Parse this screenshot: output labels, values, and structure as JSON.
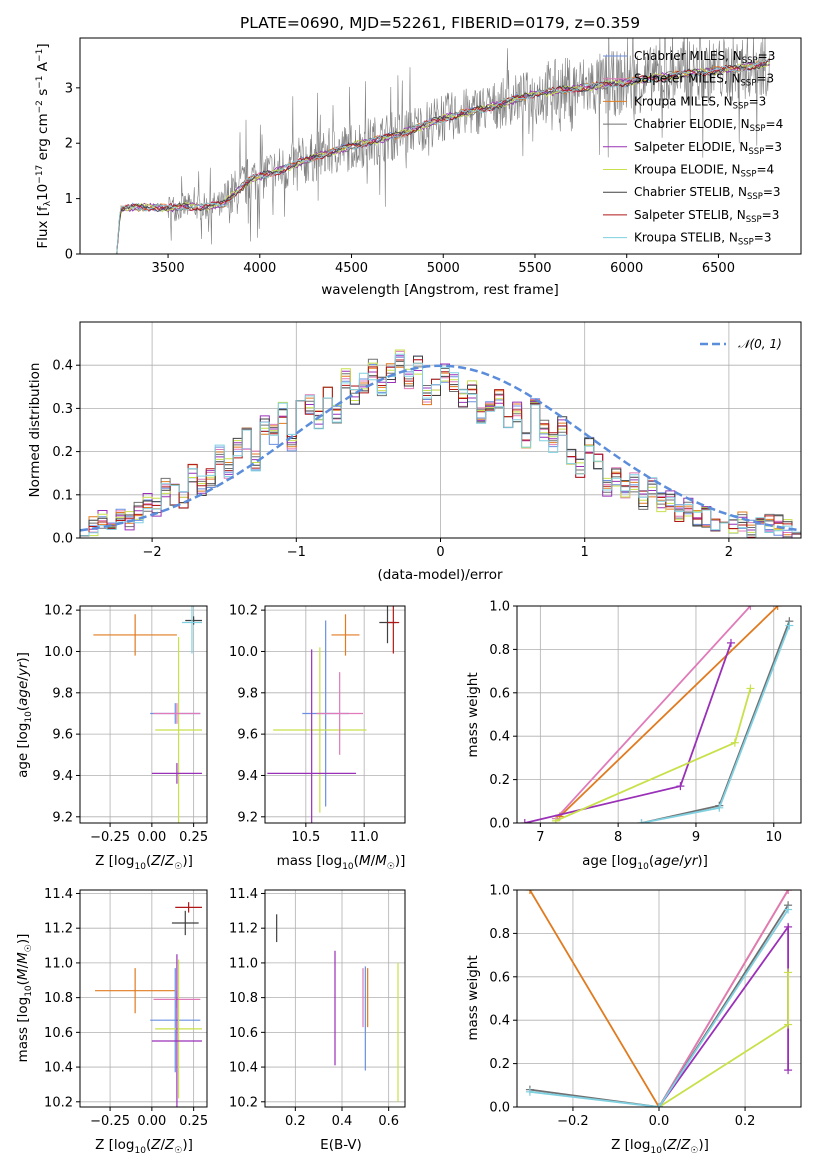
{
  "chart_data": [
    {
      "type": "line",
      "title": "PLATE=0690, MJD=52261, FIBERID=0179, z=0.359",
      "xlabel": "wavelength [Angstrom, rest frame]",
      "ylabel": "Flux [f_λ 10^-17 erg cm^-2 s^-1 A^-1]",
      "xlim": [
        3020,
        6950
      ],
      "ylim": [
        0,
        3.9
      ],
      "xticks": [
        3500,
        4000,
        4500,
        5000,
        5500,
        6000,
        6500
      ],
      "yticks": [
        0,
        1,
        2,
        3
      ],
      "legend_position": "top-right",
      "observed_color": "#808080",
      "continuum_points": [
        [
          3220,
          0
        ],
        [
          3240,
          0.8
        ],
        [
          3300,
          0.84
        ],
        [
          3400,
          0.85
        ],
        [
          3500,
          0.83
        ],
        [
          3600,
          0.86
        ],
        [
          3700,
          0.85
        ],
        [
          3800,
          0.9
        ],
        [
          3950,
          1.35
        ],
        [
          4100,
          1.5
        ],
        [
          4300,
          1.75
        ],
        [
          4500,
          1.95
        ],
        [
          4750,
          2.15
        ],
        [
          5000,
          2.45
        ],
        [
          5250,
          2.65
        ],
        [
          5500,
          2.9
        ],
        [
          5750,
          3.0
        ],
        [
          6000,
          3.1
        ],
        [
          6300,
          3.25
        ],
        [
          6600,
          3.35
        ],
        [
          6780,
          3.45
        ]
      ],
      "series": [
        {
          "name": "Chabrier MILES",
          "nssp": "3",
          "color": "#6a8fe0"
        },
        {
          "name": "Salpeter MILES",
          "nssp": "3",
          "color": "#e07ab8"
        },
        {
          "name": "Kroupa MILES",
          "nssp": "3",
          "color": "#e07b20"
        },
        {
          "name": "Chabrier ELODIE",
          "nssp": "4",
          "color": "#707070"
        },
        {
          "name": "Salpeter ELODIE",
          "nssp": "3",
          "color": "#9a30b8"
        },
        {
          "name": "Kroupa ELODIE",
          "nssp": "4",
          "color": "#c8e04a"
        },
        {
          "name": "Chabrier STELIB",
          "nssp": "3",
          "color": "#404040"
        },
        {
          "name": "Salpeter STELIB",
          "nssp": "3",
          "color": "#b01818"
        },
        {
          "name": "Kroupa STELIB",
          "nssp": "3",
          "color": "#7fd0e0"
        }
      ]
    },
    {
      "type": "bar",
      "xlabel": "(data-model)/error",
      "ylabel": "Normed distribution",
      "xlim": [
        -2.5,
        2.5
      ],
      "ylim": [
        0,
        0.5
      ],
      "xticks": [
        -2,
        -1,
        0,
        1,
        2
      ],
      "yticks": [
        0.0,
        0.1,
        0.2,
        0.3,
        0.4
      ],
      "grid": true,
      "legend_position": "top-right",
      "reference_curve": {
        "label": "𝒩(0, 1)",
        "color": "#5b8ddb"
      },
      "bin_width": 0.1,
      "bin_start": -2.5,
      "base_hist": [
        0.03,
        0.03,
        0.04,
        0.03,
        0.05,
        0.04,
        0.06,
        0.08,
        0.07,
        0.12,
        0.1,
        0.09,
        0.15,
        0.12,
        0.14,
        0.19,
        0.16,
        0.21,
        0.23,
        0.18,
        0.26,
        0.24,
        0.29,
        0.22,
        0.3,
        0.31,
        0.27,
        0.34,
        0.29,
        0.37,
        0.33,
        0.36,
        0.39,
        0.35,
        0.38,
        0.42,
        0.37,
        0.4,
        0.33,
        0.35,
        0.38,
        0.36,
        0.32,
        0.34,
        0.28,
        0.3,
        0.32,
        0.26,
        0.29,
        0.22,
        0.3,
        0.25,
        0.22,
        0.26,
        0.19,
        0.16,
        0.21,
        0.17,
        0.12,
        0.14,
        0.11,
        0.13,
        0.09,
        0.12,
        0.08,
        0.09,
        0.06,
        0.07,
        0.04,
        0.05,
        0.03,
        0.05,
        0.03,
        0.04,
        0.02,
        0.04,
        0.03,
        0.03,
        0.02,
        0.03
      ],
      "series_colors": [
        "#6a8fe0",
        "#e07ab8",
        "#e07b20",
        "#707070",
        "#9a30b8",
        "#c8e04a",
        "#404040",
        "#b01818",
        "#7fd0e0"
      ]
    },
    {
      "type": "scatter",
      "xlabel": "Z [log₁₀(Z/Z☉)]",
      "ylabel": "age  [log₁₀(age/yr)]",
      "xlim": [
        -0.43,
        0.33
      ],
      "ylim": [
        9.17,
        10.22
      ],
      "xticks": [
        -0.25,
        0.0,
        0.25
      ],
      "yticks": [
        9.2,
        9.4,
        9.6,
        9.8,
        10.0,
        10.2
      ],
      "grid": true,
      "errorbars": [
        {
          "x": -0.1,
          "y": 10.08,
          "xerr": 0.25,
          "yerr": 0.1,
          "color": "#e07b20"
        },
        {
          "x": 0.25,
          "y": 10.15,
          "xerr": 0.05,
          "yerr": 0.02,
          "color": "#404040"
        },
        {
          "x": 0.24,
          "y": 10.14,
          "xerr": 0.06,
          "yerr": 0.15,
          "color": "#7fd0e0"
        },
        {
          "x": 0.14,
          "y": 9.7,
          "xerr": 0.15,
          "yerr": 0.05,
          "color": "#6a8fe0"
        },
        {
          "x": 0.16,
          "y": 9.62,
          "xerr": 0.14,
          "yerr": 0.45,
          "color": "#c8e04a"
        },
        {
          "x": 0.15,
          "y": 9.7,
          "xerr": 0.14,
          "yerr": 0.05,
          "color": "#e07ab8"
        },
        {
          "x": 0.15,
          "y": 9.41,
          "xerr": 0.15,
          "yerr": 0.05,
          "color": "#9a30b8"
        }
      ]
    },
    {
      "type": "scatter",
      "xlabel": "mass [log₁₀(M/M☉)]",
      "xlim": [
        10.15,
        11.35
      ],
      "ylim": [
        9.17,
        10.22
      ],
      "xticks": [
        10.5,
        11.0
      ],
      "yticks": [
        9.2,
        9.4,
        9.6,
        9.8,
        10.0,
        10.2
      ],
      "grid": true,
      "errorbars": [
        {
          "x": 10.84,
          "y": 10.08,
          "xerr": 0.12,
          "yerr": 0.1,
          "color": "#e07b20"
        },
        {
          "x": 11.2,
          "y": 10.14,
          "xerr": 0.07,
          "yerr": 0.1,
          "color": "#404040"
        },
        {
          "x": 11.25,
          "y": 10.14,
          "xerr": 0.05,
          "yerr": 0.15,
          "color": "#b01818"
        },
        {
          "x": 10.67,
          "y": 9.7,
          "xerr": 0.2,
          "yerr": 0.45,
          "color": "#6a8fe0"
        },
        {
          "x": 10.62,
          "y": 9.62,
          "xerr": 0.4,
          "yerr": 0.4,
          "color": "#c8e04a"
        },
        {
          "x": 10.79,
          "y": 9.7,
          "xerr": 0.2,
          "yerr": 0.2,
          "color": "#e07ab8"
        },
        {
          "x": 10.55,
          "y": 9.41,
          "xerr": 0.38,
          "yerr": 0.6,
          "color": "#9a30b8"
        }
      ]
    },
    {
      "type": "line",
      "xlabel": "age  [log₁₀(age/yr)]",
      "ylabel": "mass weight",
      "xlim": [
        6.7,
        10.35
      ],
      "ylim": [
        0,
        1.0
      ],
      "xticks": [
        7,
        8,
        9,
        10
      ],
      "yticks": [
        0.0,
        0.2,
        0.4,
        0.6,
        0.8,
        1.0
      ],
      "grid": true,
      "series": [
        {
          "color": "#e07ab8",
          "points": [
            [
              7.2,
              0.02
            ],
            [
              9.7,
              1.0
            ]
          ]
        },
        {
          "color": "#e07b20",
          "points": [
            [
              7.25,
              0.03
            ],
            [
              10.05,
              1.0
            ]
          ]
        },
        {
          "color": "#9a30b8",
          "points": [
            [
              6.8,
              0.0
            ],
            [
              8.8,
              0.17
            ],
            [
              9.45,
              0.83
            ]
          ]
        },
        {
          "color": "#c8e04a",
          "points": [
            [
              7.2,
              0.01
            ],
            [
              9.5,
              0.37
            ],
            [
              9.7,
              0.62
            ]
          ]
        },
        {
          "color": "#707070",
          "points": [
            [
              8.3,
              0.0
            ],
            [
              9.3,
              0.08
            ],
            [
              10.2,
              0.93
            ]
          ]
        },
        {
          "color": "#7fd0e0",
          "points": [
            [
              8.3,
              0.0
            ],
            [
              9.3,
              0.07
            ],
            [
              10.2,
              0.91
            ]
          ]
        }
      ]
    },
    {
      "type": "scatter",
      "xlabel": "Z [log₁₀(Z/Z☉)]",
      "ylabel": "mass [log₁₀(M/M☉)]",
      "xlim": [
        -0.43,
        0.33
      ],
      "ylim": [
        10.17,
        11.42
      ],
      "xticks": [
        -0.25,
        0.0,
        0.25
      ],
      "yticks": [
        10.2,
        10.4,
        10.6,
        10.8,
        11.0,
        11.2,
        11.4
      ],
      "grid": true,
      "errorbars": [
        {
          "x": -0.1,
          "y": 10.84,
          "xerr": 0.24,
          "yerr": 0.13,
          "color": "#e07b20"
        },
        {
          "x": 0.22,
          "y": 11.32,
          "xerr": 0.08,
          "yerr": 0.03,
          "color": "#b01818"
        },
        {
          "x": 0.2,
          "y": 11.23,
          "xerr": 0.08,
          "yerr": 0.07,
          "color": "#404040"
        },
        {
          "x": 0.14,
          "y": 10.67,
          "xerr": 0.15,
          "yerr": 0.3,
          "color": "#6a8fe0"
        },
        {
          "x": 0.16,
          "y": 10.62,
          "xerr": 0.14,
          "yerr": 0.4,
          "color": "#c8e04a"
        },
        {
          "x": 0.15,
          "y": 10.79,
          "xerr": 0.14,
          "yerr": 0.05,
          "color": "#e07ab8"
        },
        {
          "x": 0.15,
          "y": 10.55,
          "xerr": 0.15,
          "yerr": 0.5,
          "color": "#9a30b8"
        }
      ]
    },
    {
      "type": "scatter",
      "xlabel": "E(B-V)",
      "xlim": [
        0.07,
        0.67
      ],
      "ylim": [
        10.17,
        11.42
      ],
      "xticks": [
        0.2,
        0.4,
        0.6
      ],
      "yticks": [
        10.2,
        10.4,
        10.6,
        10.8,
        11.0,
        11.2,
        11.4
      ],
      "grid": true,
      "errorbars": [
        {
          "x": 0.12,
          "y": 11.2,
          "xerr": 0,
          "yerr": 0.08,
          "color": "#404040"
        },
        {
          "x": 0.37,
          "y": 10.74,
          "xerr": 0,
          "yerr": 0.33,
          "color": "#9a30b8"
        },
        {
          "x": 0.49,
          "y": 10.8,
          "xerr": 0,
          "yerr": 0.17,
          "color": "#e07ab8"
        },
        {
          "x": 0.5,
          "y": 10.68,
          "xerr": 0,
          "yerr": 0.3,
          "color": "#6a8fe0"
        },
        {
          "x": 0.51,
          "y": 10.8,
          "xerr": 0,
          "yerr": 0.17,
          "color": "#e07b20"
        },
        {
          "x": 0.64,
          "y": 10.6,
          "xerr": 0,
          "yerr": 0.4,
          "color": "#c8e04a"
        }
      ]
    },
    {
      "type": "line",
      "xlabel": "Z [log₁₀(Z/Z☉)]",
      "ylabel": "mass weight",
      "xlim": [
        -0.33,
        0.33
      ],
      "ylim": [
        0,
        1.0
      ],
      "xticks": [
        -0.2,
        0.0,
        0.2
      ],
      "yticks": [
        0.0,
        0.2,
        0.4,
        0.6,
        0.8,
        1.0
      ],
      "grid": true,
      "series": [
        {
          "color": "#e07b20",
          "points": [
            [
              -0.3,
              1.0
            ],
            [
              0.0,
              0.0
            ],
            [
              0.3,
              1.0
            ]
          ]
        },
        {
          "color": "#e07ab8",
          "points": [
            [
              0.0,
              0.0
            ],
            [
              0.3,
              1.0
            ]
          ]
        },
        {
          "color": "#9a30b8",
          "points": [
            [
              0.0,
              0.0
            ],
            [
              0.3,
              0.83
            ],
            [
              0.3,
              0.17
            ]
          ]
        },
        {
          "color": "#c8e04a",
          "points": [
            [
              0.0,
              0.0
            ],
            [
              0.3,
              0.38
            ],
            [
              0.3,
              0.62
            ]
          ]
        },
        {
          "color": "#707070",
          "points": [
            [
              -0.3,
              0.08
            ],
            [
              0.0,
              0.0
            ],
            [
              0.3,
              0.93
            ]
          ]
        },
        {
          "color": "#7fd0e0",
          "points": [
            [
              -0.3,
              0.07
            ],
            [
              0.0,
              0.0
            ],
            [
              0.3,
              0.91
            ]
          ]
        }
      ]
    }
  ]
}
